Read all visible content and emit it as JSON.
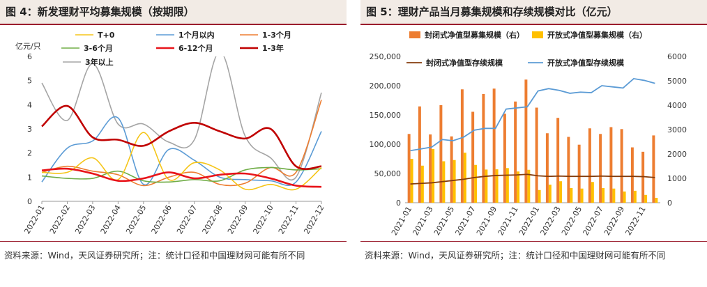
{
  "left": {
    "title": "图 4：新发理财平均募集规模（按期限）",
    "source": "资料来源：Wind，天风证券研究所；注：统计口径和中国理财网可能有所不同",
    "chart_data": {
      "type": "line",
      "ylabel": "亿元/只",
      "ylim": [
        0,
        6
      ],
      "yticks": [
        "0",
        "1",
        "2",
        "3",
        "4",
        "5",
        "6"
      ],
      "grid": false,
      "legend": "top",
      "categories": [
        "2022-01",
        "2022-02",
        "2022-03",
        "2022-04",
        "2022-05",
        "2022-06",
        "2022-07",
        "2022-08",
        "2022-09",
        "2022-10",
        "2022-11",
        "2022-12"
      ],
      "series": [
        {
          "name": "T+0",
          "color": "#f5c518",
          "width": 1.6,
          "values": [
            1.2,
            1.2,
            1.8,
            0.9,
            2.85,
            0.9,
            1.6,
            1.3,
            0.5,
            0.7,
            0.5,
            1.4
          ]
        },
        {
          "name": "1个月以内",
          "color": "#5b9bd5",
          "width": 1.6,
          "values": [
            0.8,
            2.2,
            2.5,
            3.45,
            0.7,
            2.15,
            1.7,
            1.0,
            0.9,
            0.85,
            0.8,
            2.9
          ]
        },
        {
          "name": "1-3个月",
          "color": "#ed7d31",
          "width": 1.6,
          "values": [
            1.2,
            1.45,
            1.25,
            1.1,
            0.65,
            1.0,
            1.2,
            0.7,
            0.75,
            1.4,
            1.2,
            4.2
          ]
        },
        {
          "name": "3-6个月",
          "color": "#70ad47",
          "width": 1.6,
          "values": [
            1.05,
            0.95,
            0.95,
            1.25,
            0.85,
            0.8,
            0.9,
            0.85,
            1.3,
            1.4,
            1.3,
            1.35
          ]
        },
        {
          "name": "6-12个月",
          "color": "#e8141a",
          "width": 2.6,
          "values": [
            1.28,
            1.35,
            1.15,
            0.85,
            0.95,
            1.2,
            0.95,
            1.1,
            1.15,
            0.95,
            0.65,
            0.6
          ]
        },
        {
          "name": "1-3年",
          "color": "#c00000",
          "width": 2.6,
          "values": [
            3.1,
            3.95,
            2.65,
            2.55,
            2.3,
            2.9,
            3.25,
            2.9,
            2.6,
            3.0,
            1.45,
            1.45
          ]
        },
        {
          "name": "3年以上",
          "color": "#a5a5a5",
          "width": 1.6,
          "values": [
            4.9,
            3.35,
            5.7,
            3.2,
            3.2,
            2.45,
            2.55,
            6.2,
            2.7,
            1.8,
            1.0,
            4.5
          ]
        }
      ]
    }
  },
  "right": {
    "title": "图 5：理财产品当月募集规模和存续规模对比（亿元）",
    "source": "资料来源：Wind，天风证券研究所；注：统计口径和中国理财网可能有所不同",
    "chart_data": {
      "type": "bar",
      "grid": false,
      "legend": "top",
      "ylim": [
        0,
        250000
      ],
      "yticks": [
        "0",
        "50,000",
        "100,000",
        "150,000",
        "200,000",
        "250,000"
      ],
      "y2lim": [
        0,
        6000
      ],
      "y2ticks": [
        "0",
        "1000",
        "2000",
        "3000",
        "4000",
        "5000",
        "6000"
      ],
      "xticks": [
        "2021-01",
        "2021-03",
        "2021-05",
        "2021-07",
        "2021-09",
        "2021-11",
        "2022-01",
        "2022-03",
        "2022-05",
        "2022-07",
        "2022-09",
        "2022-11"
      ],
      "bar_series": [
        {
          "name": "封闭式净值型募集规模（右）",
          "color": "#ed7d31",
          "axis": "right",
          "values": [
            2820,
            3950,
            2800,
            4000,
            2720,
            4650,
            3730,
            4460,
            4680,
            3650,
            4150,
            5050,
            3900,
            2850,
            3480,
            2700,
            2380,
            3050,
            2820,
            3100,
            3020,
            2270,
            2090,
            2760
          ]
        },
        {
          "name": "开放式净值型募集规模（右）",
          "color": "#ffc000",
          "axis": "right",
          "values": [
            1800,
            1520,
            2200,
            1700,
            1750,
            2050,
            1550,
            1360,
            1370,
            1420,
            1280,
            1350,
            520,
            740,
            880,
            600,
            580,
            850,
            600,
            580,
            460,
            490,
            320,
            200
          ]
        }
      ],
      "line_series": [
        {
          "name": "封闭式净值型存续规模",
          "color": "#843c0c",
          "axis": "left",
          "values": [
            32000,
            33000,
            34000,
            36000,
            38000,
            40000,
            43000,
            45000,
            46500,
            47000,
            47500,
            48500,
            46000,
            45000,
            45500,
            45000,
            45000,
            45000,
            45500,
            45000,
            45000,
            45000,
            44500,
            43000
          ]
        },
        {
          "name": "开放式净值型存续规模",
          "color": "#5b9bd5",
          "axis": "left",
          "values": [
            89000,
            92000,
            95000,
            108000,
            106000,
            112000,
            124000,
            127000,
            127000,
            160000,
            162000,
            164000,
            191000,
            195000,
            192000,
            187000,
            189000,
            188000,
            200000,
            198000,
            196000,
            212000,
            209000,
            204000
          ]
        }
      ]
    }
  }
}
